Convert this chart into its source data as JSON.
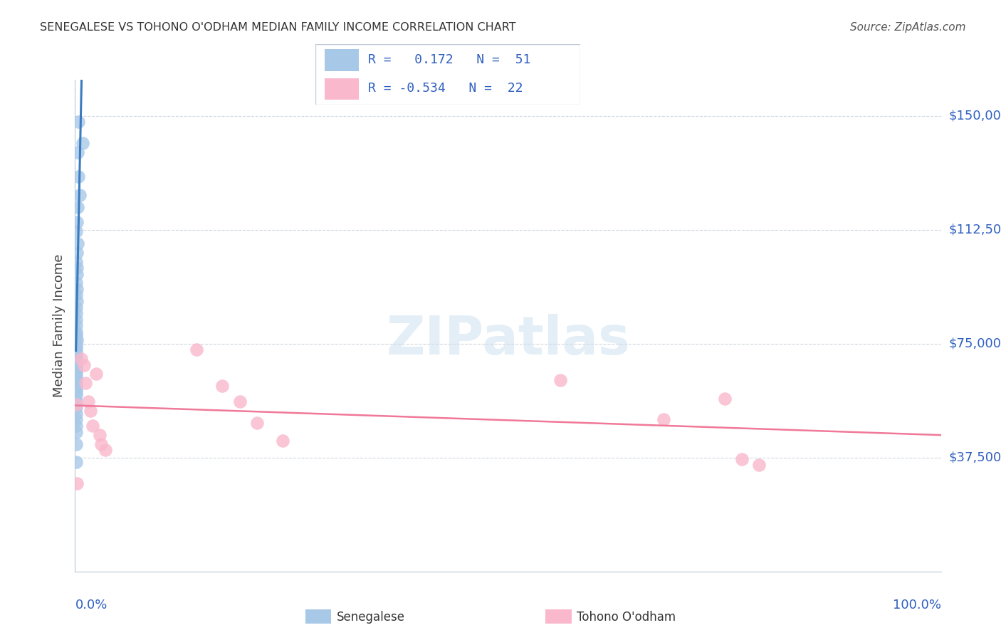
{
  "title": "SENEGALESE VS TOHONO O'ODHAM MEDIAN FAMILY INCOME CORRELATION CHART",
  "source": "Source: ZipAtlas.com",
  "ylabel": "Median Family Income",
  "y_ticks": [
    0,
    37500,
    75000,
    112500,
    150000
  ],
  "y_tick_labels": [
    "",
    "$37,500",
    "$75,000",
    "$112,500",
    "$150,000"
  ],
  "ylim": [
    0,
    162000
  ],
  "xlim": [
    0.0,
    1.0
  ],
  "blue_scatter_color": "#a8c8e8",
  "pink_scatter_color": "#f9b8cc",
  "blue_line_color": "#3a7cc0",
  "blue_dash_color": "#b0c8d8",
  "pink_line_color": "#f07898",
  "legend_text_color": "#3060c0",
  "axis_label_color": "#3060c0",
  "title_color": "#333333",
  "grid_color": "#d0d8e0",
  "watermark_color": "#cce0f0",
  "senegalese_x": [
    0.004,
    0.009,
    0.003,
    0.004,
    0.005,
    0.003,
    0.002,
    0.001,
    0.003,
    0.002,
    0.001,
    0.002,
    0.002,
    0.001,
    0.002,
    0.001,
    0.002,
    0.001,
    0.001,
    0.001,
    0.001,
    0.001,
    0.001,
    0.001,
    0.002,
    0.001,
    0.001,
    0.001,
    0.001,
    0.001,
    0.001,
    0.001,
    0.001,
    0.001,
    0.001,
    0.001,
    0.001,
    0.001,
    0.001,
    0.001,
    0.001,
    0.001,
    0.001,
    0.001,
    0.001,
    0.001,
    0.001,
    0.001,
    0.001,
    0.001,
    0.001
  ],
  "senegalese_y": [
    148000,
    141000,
    138000,
    130000,
    124000,
    120000,
    115000,
    112000,
    108000,
    105000,
    102000,
    100000,
    98000,
    95000,
    93000,
    91000,
    89000,
    87000,
    85000,
    83000,
    81000,
    79000,
    78000,
    77000,
    76000,
    75000,
    74000,
    73000,
    72000,
    71000,
    70000,
    69000,
    68000,
    67000,
    66000,
    65000,
    64000,
    63000,
    62000,
    61000,
    60000,
    59000,
    58000,
    56000,
    54000,
    52000,
    50000,
    48000,
    46000,
    42000,
    36000
  ],
  "tohono_x": [
    0.001,
    0.002,
    0.007,
    0.01,
    0.012,
    0.015,
    0.018,
    0.02,
    0.024,
    0.028,
    0.03,
    0.035,
    0.14,
    0.17,
    0.19,
    0.21,
    0.24,
    0.56,
    0.68,
    0.75,
    0.77,
    0.79
  ],
  "tohono_y": [
    55000,
    29000,
    70000,
    68000,
    62000,
    56000,
    53000,
    48000,
    65000,
    45000,
    42000,
    40000,
    73000,
    61000,
    56000,
    49000,
    43000,
    63000,
    50000,
    57000,
    37000,
    35000
  ]
}
